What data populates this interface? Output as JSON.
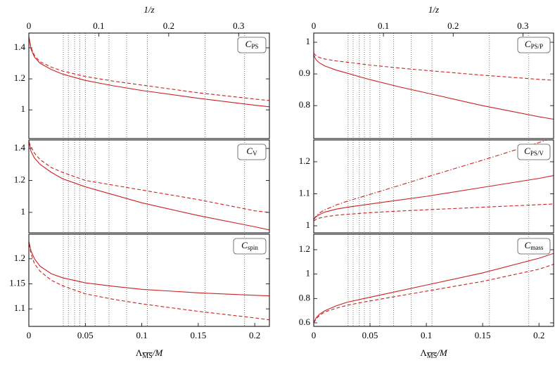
{
  "chart_data": [
    {
      "type": "line",
      "label": {
        "main": "C",
        "sub": "PS"
      },
      "x2label": "1/z",
      "x2lim": [
        0,
        0.344
      ],
      "x2ticks": [
        0,
        0.1,
        0.2,
        0.3
      ],
      "xlim": [
        0,
        0.213
      ],
      "ylim": [
        0.815,
        1.495
      ],
      "yticks": [
        1,
        1.2,
        1.4
      ],
      "vlines": [
        0.0305,
        0.035,
        0.0405,
        0.045,
        0.05,
        0.0586,
        0.071,
        0.0866,
        0.105,
        0.156,
        0.191
      ],
      "x": [
        0,
        0.002,
        0.005,
        0.01,
        0.02,
        0.03,
        0.05,
        0.075,
        0.1,
        0.15,
        0.2,
        0.213
      ],
      "series": [
        {
          "color": "#cc2222",
          "dash": "solid",
          "values": [
            1.47,
            1.39,
            1.34,
            1.3,
            1.26,
            1.23,
            1.19,
            1.155,
            1.125,
            1.075,
            1.03,
            1.02
          ]
        },
        {
          "color": "#cc2222",
          "dash": "dashed",
          "values": [
            1.47,
            1.4,
            1.35,
            1.31,
            1.275,
            1.25,
            1.215,
            1.185,
            1.16,
            1.11,
            1.07,
            1.06
          ]
        }
      ]
    },
    {
      "type": "line",
      "label": {
        "main": "C",
        "sub": "PS/P"
      },
      "x2label": "1/z",
      "x2lim": [
        0,
        0.344
      ],
      "x2ticks": [
        0,
        0.1,
        0.2,
        0.3
      ],
      "xlim": [
        0,
        0.213
      ],
      "ylim": [
        0.696,
        1.029
      ],
      "yticks": [
        0.8,
        0.9,
        1
      ],
      "vlines": [
        0.0305,
        0.035,
        0.0405,
        0.045,
        0.05,
        0.0586,
        0.071,
        0.0866,
        0.105,
        0.156,
        0.191
      ],
      "x": [
        0,
        0.002,
        0.005,
        0.01,
        0.02,
        0.03,
        0.05,
        0.075,
        0.1,
        0.15,
        0.2,
        0.213
      ],
      "series": [
        {
          "color": "#cc2222",
          "dash": "solid",
          "values": [
            0.96,
            0.945,
            0.935,
            0.925,
            0.912,
            0.902,
            0.882,
            0.86,
            0.84,
            0.8,
            0.765,
            0.757
          ]
        },
        {
          "color": "#cc2222",
          "dash": "dashed",
          "values": [
            0.965,
            0.958,
            0.952,
            0.947,
            0.941,
            0.937,
            0.928,
            0.919,
            0.911,
            0.896,
            0.883,
            0.88
          ]
        }
      ]
    },
    {
      "type": "line",
      "label": {
        "main": "C",
        "sub": "V"
      },
      "xlim": [
        0,
        0.213
      ],
      "ylim": [
        0.872,
        1.453
      ],
      "yticks": [
        1,
        1.2,
        1.4
      ],
      "vlines": [
        0.0305,
        0.035,
        0.0405,
        0.045,
        0.05,
        0.0586,
        0.071,
        0.0866,
        0.105,
        0.156,
        0.191
      ],
      "x": [
        0,
        0.002,
        0.005,
        0.01,
        0.02,
        0.03,
        0.05,
        0.075,
        0.1,
        0.15,
        0.2,
        0.213
      ],
      "series": [
        {
          "color": "#cc2222",
          "dash": "solid",
          "values": [
            1.45,
            1.38,
            1.34,
            1.3,
            1.25,
            1.21,
            1.16,
            1.11,
            1.06,
            0.98,
            0.91,
            0.89
          ]
        },
        {
          "color": "#cc2222",
          "dash": "dashed",
          "values": [
            1.44,
            1.41,
            1.37,
            1.33,
            1.28,
            1.25,
            1.2,
            1.17,
            1.14,
            1.08,
            1.01,
            1.0
          ]
        }
      ]
    },
    {
      "type": "line",
      "label": {
        "main": "C",
        "sub": "PS/V"
      },
      "xlim": [
        0,
        0.213
      ],
      "ylim": [
        0.978,
        1.268
      ],
      "yticks": [
        1,
        1.1,
        1.2
      ],
      "vlines": [
        0.0305,
        0.035,
        0.0405,
        0.045,
        0.05,
        0.0586,
        0.071,
        0.0866,
        0.105,
        0.156,
        0.191
      ],
      "x": [
        0,
        0.002,
        0.005,
        0.01,
        0.02,
        0.03,
        0.05,
        0.075,
        0.1,
        0.15,
        0.2,
        0.213
      ],
      "series": [
        {
          "color": "#cc2222",
          "dash": "solid",
          "values": [
            1.02,
            1.028,
            1.035,
            1.043,
            1.052,
            1.058,
            1.068,
            1.08,
            1.092,
            1.12,
            1.148,
            1.157
          ]
        },
        {
          "color": "#cc2222",
          "dash": "dashdot",
          "values": [
            1.02,
            1.03,
            1.04,
            1.05,
            1.065,
            1.077,
            1.098,
            1.125,
            1.152,
            1.205,
            1.26,
            1.275
          ]
        },
        {
          "color": "#cc2222",
          "dash": "dashed",
          "values": [
            1.015,
            1.02,
            1.024,
            1.028,
            1.033,
            1.036,
            1.041,
            1.046,
            1.05,
            1.058,
            1.066,
            1.068
          ]
        }
      ]
    },
    {
      "type": "line",
      "label": {
        "main": "C",
        "sub": "spin"
      },
      "xlabel": {
        "main": "Λ",
        "sub": "MS",
        "rest": "/M"
      },
      "xlim": [
        0,
        0.213
      ],
      "xticks": [
        0,
        0.05,
        0.1,
        0.15,
        0.2
      ],
      "ylim": [
        1.065,
        1.249
      ],
      "yticks": [
        1.1,
        1.15,
        1.2
      ],
      "vlines": [
        0.0305,
        0.035,
        0.0405,
        0.045,
        0.05,
        0.0586,
        0.071,
        0.0866,
        0.105,
        0.156,
        0.191
      ],
      "x": [
        0,
        0.002,
        0.005,
        0.01,
        0.02,
        0.03,
        0.05,
        0.075,
        0.1,
        0.15,
        0.2,
        0.213
      ],
      "series": [
        {
          "color": "#cc2222",
          "dash": "solid",
          "values": [
            1.235,
            1.215,
            1.2,
            1.185,
            1.17,
            1.162,
            1.152,
            1.145,
            1.139,
            1.132,
            1.127,
            1.126
          ]
        },
        {
          "color": "#cc2222",
          "dash": "dashed",
          "values": [
            1.23,
            1.21,
            1.19,
            1.175,
            1.157,
            1.146,
            1.13,
            1.119,
            1.11,
            1.095,
            1.082,
            1.078
          ]
        }
      ]
    },
    {
      "type": "line",
      "label": {
        "main": "C",
        "sub": "mass"
      },
      "xlabel": {
        "main": "Λ",
        "sub": "MS",
        "rest": "/M"
      },
      "xlim": [
        0,
        0.213
      ],
      "xticks": [
        0,
        0.05,
        0.1,
        0.15,
        0.2
      ],
      "ylim": [
        0.571,
        1.327
      ],
      "yticks": [
        0.6,
        0.8,
        1,
        1.2
      ],
      "vlines": [
        0.0305,
        0.035,
        0.0405,
        0.045,
        0.05,
        0.0586,
        0.071,
        0.0866,
        0.105,
        0.156,
        0.191
      ],
      "x": [
        0,
        0.002,
        0.005,
        0.01,
        0.02,
        0.03,
        0.05,
        0.075,
        0.1,
        0.15,
        0.2,
        0.213
      ],
      "series": [
        {
          "color": "#cc2222",
          "dash": "solid",
          "values": [
            0.6,
            0.64,
            0.67,
            0.7,
            0.74,
            0.77,
            0.81,
            0.86,
            0.91,
            1.01,
            1.13,
            1.17
          ]
        },
        {
          "color": "#cc2222",
          "dash": "dashed",
          "values": [
            0.6,
            0.63,
            0.66,
            0.69,
            0.72,
            0.745,
            0.78,
            0.82,
            0.86,
            0.94,
            1.04,
            1.08
          ]
        }
      ]
    }
  ]
}
